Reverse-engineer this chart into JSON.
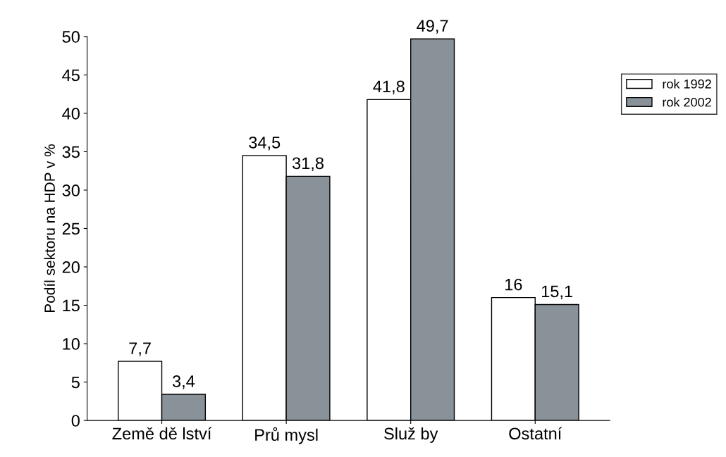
{
  "chart_data": {
    "type": "bar",
    "ylabel": "Podíl sektoru na HDP v %",
    "categories": [
      "Země dě lství",
      "Prů mysl",
      "Služ by",
      "Ostatní"
    ],
    "series": [
      {
        "name": "rok 1992",
        "color": "#ffffff",
        "values": [
          7.7,
          34.5,
          41.8,
          16
        ],
        "value_labels": [
          "7,7",
          "34,5",
          "41,8",
          "16"
        ]
      },
      {
        "name": "rok 2002",
        "color": "#8a9299",
        "values": [
          3.4,
          31.8,
          49.7,
          15.1
        ],
        "value_labels": [
          "3,4",
          "31,8",
          "49,7",
          "15,1"
        ]
      }
    ],
    "ylim": [
      0,
      50
    ],
    "yticks": [
      0,
      5,
      10,
      15,
      20,
      25,
      30,
      35,
      40,
      45,
      50
    ],
    "grid": false,
    "legend": "right"
  }
}
